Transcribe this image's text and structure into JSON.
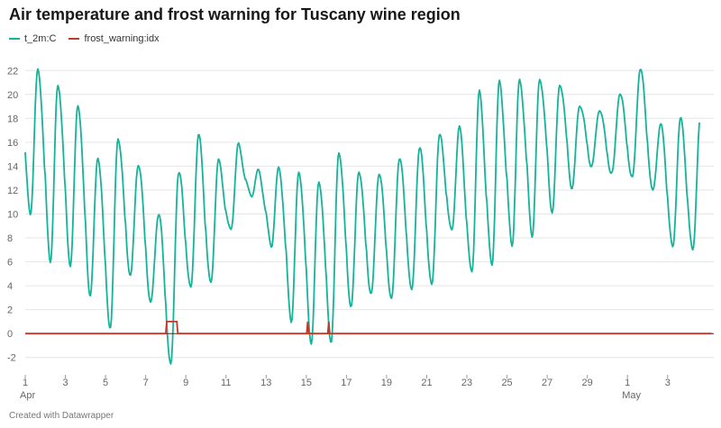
{
  "title": "Air temperature and frost warning for Tuscany wine region",
  "footer": "Created with Datawrapper",
  "chart_data": {
    "type": "line",
    "title": "Air temperature and frost warning for Tuscany wine region",
    "xlabel": "",
    "ylabel": "",
    "ylim": [
      -3,
      23
    ],
    "xlim": [
      1,
      35.3
    ],
    "x_ticks": [
      {
        "day": 1,
        "label": "1",
        "sub": "Apr"
      },
      {
        "day": 3,
        "label": "3"
      },
      {
        "day": 5,
        "label": "5"
      },
      {
        "day": 7,
        "label": "7"
      },
      {
        "day": 9,
        "label": "9"
      },
      {
        "day": 11,
        "label": "11"
      },
      {
        "day": 13,
        "label": "13"
      },
      {
        "day": 15,
        "label": "15"
      },
      {
        "day": 17,
        "label": "17"
      },
      {
        "day": 19,
        "label": "19"
      },
      {
        "day": 21,
        "label": "21"
      },
      {
        "day": 23,
        "label": "23"
      },
      {
        "day": 25,
        "label": "25"
      },
      {
        "day": 27,
        "label": "27"
      },
      {
        "day": 29,
        "label": "29"
      },
      {
        "day": 31,
        "label": "1",
        "sub": "May"
      },
      {
        "day": 33,
        "label": "3"
      }
    ],
    "y_ticks": [
      -2,
      0,
      2,
      4,
      6,
      8,
      10,
      12,
      14,
      16,
      18,
      20,
      22
    ],
    "grid": true,
    "legend_position": "top-left",
    "series": [
      {
        "name": "t_2m:C",
        "color": "#15b39a",
        "daily": [
          {
            "day": 1,
            "min": 10,
            "max": 22.2
          },
          {
            "day": 2,
            "min": 6.4,
            "max": 20.6
          },
          {
            "day": 3,
            "min": 6.2,
            "max": 18.8
          },
          {
            "day": 4,
            "min": 3.5,
            "max": 14.6
          },
          {
            "day": 5,
            "min": 0.4,
            "max": 16.6
          },
          {
            "day": 6,
            "min": 4.5,
            "max": 14.6
          },
          {
            "day": 7,
            "min": 2.3,
            "max": 10.3
          },
          {
            "day": 8,
            "min": -2.6,
            "max": 13.3
          },
          {
            "day": 9,
            "min": 4,
            "max": 16.2
          },
          {
            "day": 10,
            "min": 4.3,
            "max": 14.1
          },
          {
            "day": 11,
            "min": 8.5,
            "max": 15.7
          },
          {
            "day": 12,
            "min": 11.2,
            "max": 13.8
          },
          {
            "day": 13,
            "min": 7.2,
            "max": 14.1
          },
          {
            "day": 14,
            "min": 1.3,
            "max": 13.5
          },
          {
            "day": 15,
            "min": -0.3,
            "max": 12.5
          },
          {
            "day": 16,
            "min": -0.3,
            "max": 15
          },
          {
            "day": 17,
            "min": 2.3,
            "max": 13.7
          },
          {
            "day": 18,
            "min": 3,
            "max": 13.8
          },
          {
            "day": 19,
            "min": 2.5,
            "max": 15
          },
          {
            "day": 20,
            "min": 3.5,
            "max": 15.5
          },
          {
            "day": 21,
            "min": 4.2,
            "max": 16.2
          },
          {
            "day": 22,
            "min": 8.8,
            "max": 16.8
          },
          {
            "day": 23,
            "min": 5.1,
            "max": 20
          },
          {
            "day": 24,
            "min": 5.5,
            "max": 21.2
          },
          {
            "day": 25,
            "min": 7.2,
            "max": 21.5
          },
          {
            "day": 26,
            "min": 8.3,
            "max": 21.4
          },
          {
            "day": 27,
            "min": 10.6,
            "max": 20.7
          },
          {
            "day": 28,
            "min": 12.6,
            "max": 18.9
          },
          {
            "day": 29,
            "min": 14.2,
            "max": 18.7
          },
          {
            "day": 30,
            "min": 13.2,
            "max": 20.4
          },
          {
            "day": 31,
            "min": 12.6,
            "max": 22.5
          },
          {
            "day": 32,
            "min": 11.7,
            "max": 17.6
          },
          {
            "day": 33,
            "min": 7.3,
            "max": 17.7
          },
          {
            "day": 34,
            "min": 7.2,
            "max": 17.5
          }
        ]
      },
      {
        "name": "frost_warning:idx",
        "color": "#c0392b",
        "points": [
          [
            1,
            0
          ],
          [
            8.0,
            0
          ],
          [
            8.05,
            1
          ],
          [
            8.55,
            1
          ],
          [
            8.6,
            0
          ],
          [
            15.02,
            0
          ],
          [
            15.07,
            1
          ],
          [
            15.12,
            0
          ],
          [
            16.07,
            0
          ],
          [
            16.12,
            1
          ],
          [
            16.17,
            0
          ],
          [
            35.2,
            0
          ]
        ]
      }
    ]
  }
}
